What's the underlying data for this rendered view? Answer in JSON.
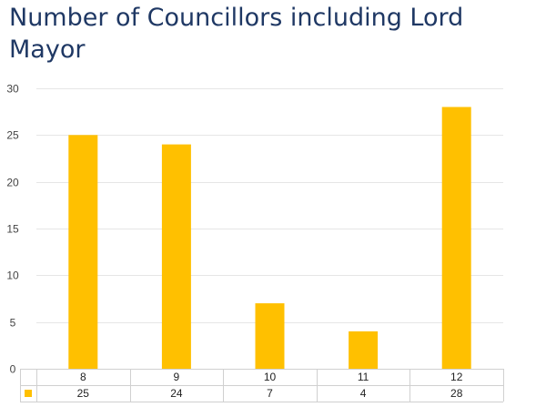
{
  "chart_data": {
    "type": "bar",
    "title": "Number of Councillors including Lord Mayor",
    "categories": [
      "8",
      "9",
      "10",
      "11",
      "12"
    ],
    "series": [
      {
        "values": [
          25,
          24,
          7,
          4,
          28
        ],
        "color": "#ffc000"
      }
    ],
    "ylim": [
      0,
      30
    ],
    "yticks": [
      0,
      5,
      10,
      15,
      20,
      25,
      30
    ],
    "grid": true,
    "data_table": true
  }
}
